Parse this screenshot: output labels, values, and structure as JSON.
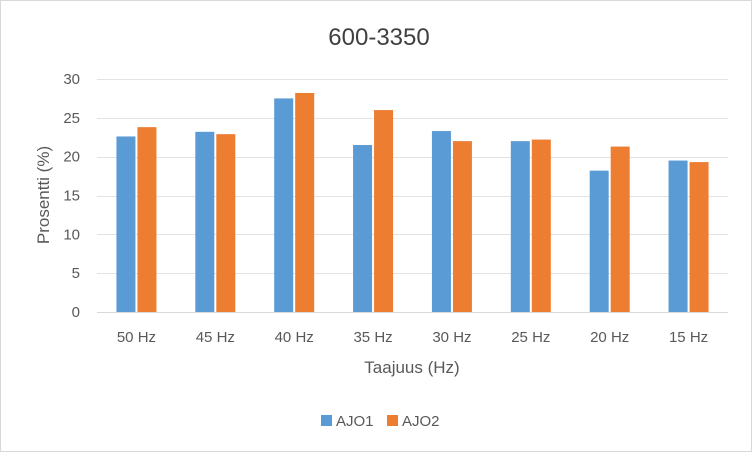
{
  "chart_data": {
    "type": "bar",
    "title": "600-3350",
    "xlabel": "Taajuus (Hz)",
    "ylabel": "Prosentti (%)",
    "categories": [
      "50 Hz",
      "45 Hz",
      "40 Hz",
      "35 Hz",
      "30 Hz",
      "25 Hz",
      "20 Hz",
      "15 Hz"
    ],
    "series": [
      {
        "name": "AJO1",
        "color": "#5b9bd5",
        "values": [
          22.6,
          23.2,
          27.5,
          21.5,
          23.3,
          22.0,
          18.2,
          19.5
        ]
      },
      {
        "name": "AJO2",
        "color": "#ed7d31",
        "values": [
          23.8,
          22.9,
          28.2,
          26.0,
          22.0,
          22.2,
          21.3,
          19.3
        ]
      }
    ],
    "ylim": [
      0,
      30
    ],
    "yticks": [
      0,
      5,
      10,
      15,
      20,
      25,
      30
    ],
    "grid": true,
    "legend": "bottom-center"
  }
}
